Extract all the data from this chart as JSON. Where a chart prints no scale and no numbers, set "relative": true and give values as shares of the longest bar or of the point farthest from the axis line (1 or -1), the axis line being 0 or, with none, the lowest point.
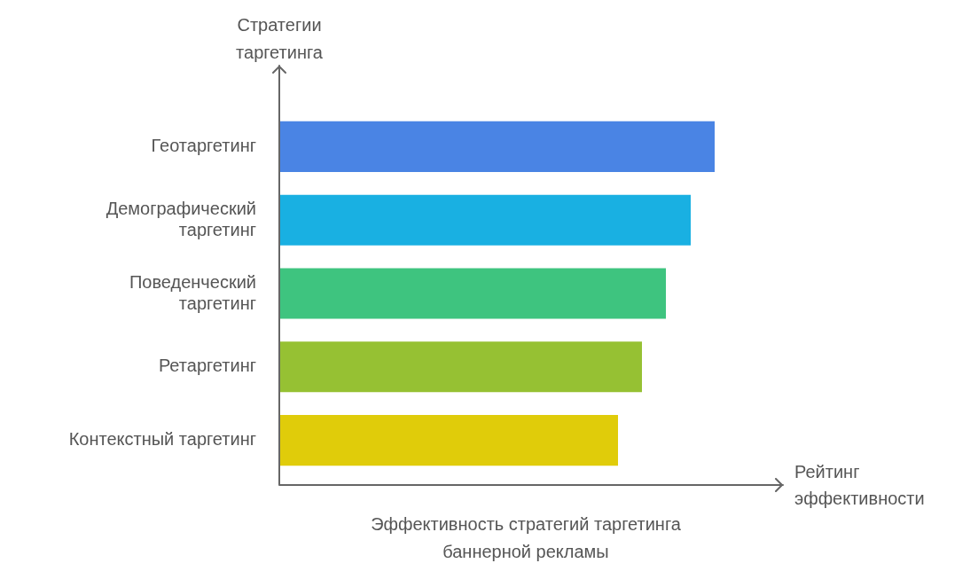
{
  "chart_data": {
    "type": "bar",
    "orientation": "horizontal",
    "relative": true,
    "title": "Эффективность стратегий таргетинга баннерной рекламы",
    "xlabel": "Рейтинг эффективности",
    "ylabel": "Стратегии таргетинга",
    "categories": [
      "Геотаргетинг",
      "Демографический таргетинг",
      "Поведенческий таргетинг",
      "Ретаргетинг",
      "Контекстный таргетинг"
    ],
    "values": [
      1,
      0.945,
      0.888,
      0.833,
      0.778
    ],
    "colors": [
      "#4a84e4",
      "#19b0e2",
      "#3ec47f",
      "#96c133",
      "#e0cc0a"
    ]
  }
}
